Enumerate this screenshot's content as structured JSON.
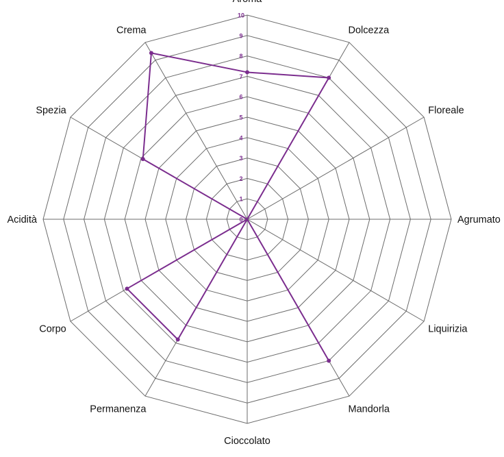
{
  "chart_data": {
    "type": "radar",
    "axes": [
      "Aroma",
      "Dolcezza",
      "Floreale",
      "Agrumato",
      "Liquirizia",
      "Mandorla",
      "Cioccolato",
      "Permanenza",
      "Corpo",
      "Acidità",
      "Spezia",
      "Crema"
    ],
    "range": [
      0,
      10
    ],
    "ticks": [
      0,
      1,
      2,
      3,
      4,
      5,
      6,
      7,
      8,
      9,
      10
    ],
    "grid": true,
    "series": [
      {
        "values": [
          7.2,
          8.0,
          0,
          0,
          0,
          8.0,
          0,
          6.8,
          6.8,
          0,
          5.9,
          9.4
        ],
        "color": "#7b2d8e"
      }
    ]
  },
  "colors": {
    "grid": "#6b6b6b",
    "tick_label": "#7b2d8e",
    "axis_label": "#111111"
  }
}
